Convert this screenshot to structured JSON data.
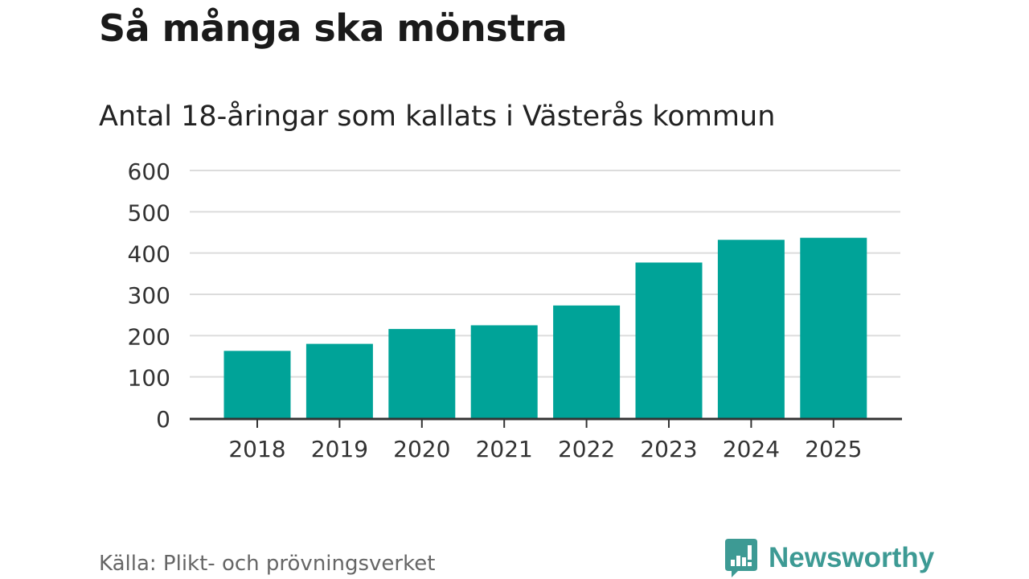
{
  "title": "Så många ska mönstra",
  "subtitle": "Antal 18-åringar som kallats i Västerås kommun",
  "source": "Källa: Plikt- och prövningsverket",
  "brand": "Newsworthy",
  "colors": {
    "bar": "#00a398",
    "grid": "#dcdcdc",
    "axis": "#333333",
    "brand": "#3d9a94"
  },
  "chart_data": {
    "type": "bar",
    "title": "Så många ska mönstra",
    "subtitle": "Antal 18-åringar som kallats i Västerås kommun",
    "xlabel": "",
    "ylabel": "",
    "categories": [
      "2018",
      "2019",
      "2020",
      "2021",
      "2022",
      "2023",
      "2024",
      "2025"
    ],
    "values": [
      163,
      180,
      216,
      225,
      273,
      377,
      432,
      437
    ],
    "ylim": [
      0,
      600
    ],
    "yticks": [
      "0",
      "100",
      "200",
      "300",
      "400",
      "500",
      "600"
    ],
    "grid": true
  }
}
